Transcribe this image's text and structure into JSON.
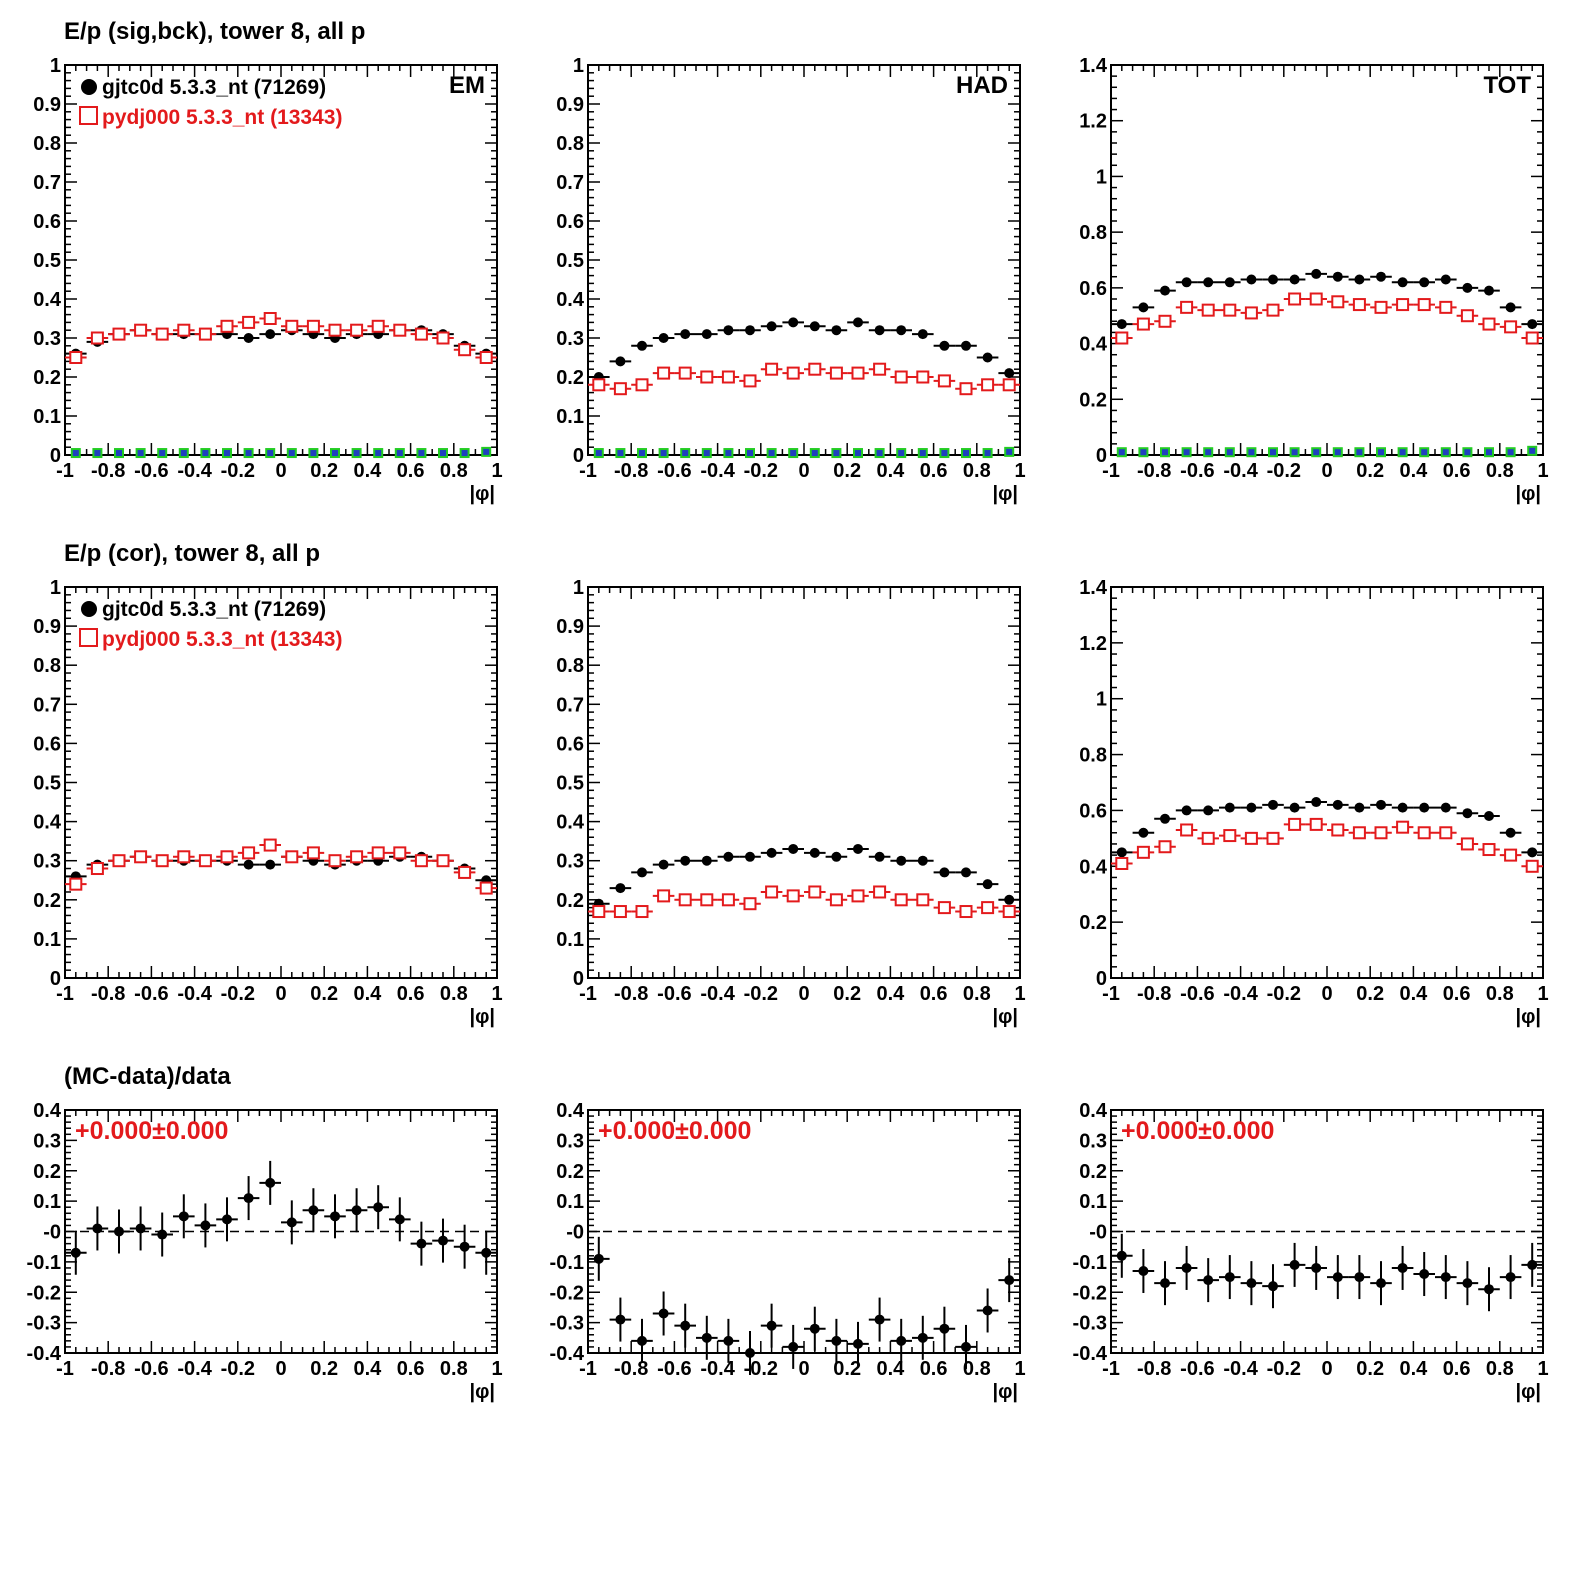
{
  "row_titles": [
    "E/p (sig,bck), tower 8, all p",
    "E/p (cor), tower 8, all p",
    "(MC-data)/data"
  ],
  "x_axis_label": "|φ|",
  "legend": {
    "data_label": "gjtc0d 5.3.3_nt (71269)",
    "mc_label": "pydj000 5.3.3_nt (13343)"
  },
  "panel_labels": [
    "EM",
    "HAD",
    "TOT"
  ],
  "ratio_text": "+0.000±0.000",
  "colors": {
    "data": "#000000",
    "mc": "#e31a1c",
    "bck_fill": "#1f3fbf",
    "bck_edge": "#22cc22"
  },
  "chart_data": [
    {
      "type": "scatter",
      "row": "sig_bck",
      "column": "EM",
      "x": [
        -0.95,
        -0.85,
        -0.75,
        -0.65,
        -0.55,
        -0.45,
        -0.35,
        -0.25,
        -0.15,
        -0.05,
        0.05,
        0.15,
        0.25,
        0.35,
        0.45,
        0.55,
        0.65,
        0.75,
        0.85,
        0.95
      ],
      "xlim": [
        -1,
        1
      ],
      "ylim": [
        0,
        1
      ],
      "series": [
        {
          "name": "gjtc0d 5.3.3_nt (71269)",
          "values": [
            0.26,
            0.29,
            0.31,
            0.32,
            0.31,
            0.31,
            0.31,
            0.31,
            0.3,
            0.31,
            0.32,
            0.31,
            0.3,
            0.31,
            0.31,
            0.32,
            0.32,
            0.31,
            0.28,
            0.26
          ]
        },
        {
          "name": "pydj000 5.3.3_nt (13343)",
          "values": [
            0.25,
            0.3,
            0.31,
            0.32,
            0.31,
            0.32,
            0.31,
            0.33,
            0.34,
            0.35,
            0.33,
            0.33,
            0.32,
            0.32,
            0.33,
            0.32,
            0.31,
            0.3,
            0.27,
            0.25
          ]
        },
        {
          "values": [
            0.005,
            0.005,
            0.005,
            0.005,
            0.005,
            0.005,
            0.005,
            0.005,
            0.005,
            0.005,
            0.005,
            0.005,
            0.005,
            0.005,
            0.005,
            0.005,
            0.005,
            0.005,
            0.005,
            0.008
          ]
        }
      ]
    },
    {
      "type": "scatter",
      "row": "sig_bck",
      "column": "HAD",
      "x": [
        -0.95,
        -0.85,
        -0.75,
        -0.65,
        -0.55,
        -0.45,
        -0.35,
        -0.25,
        -0.15,
        -0.05,
        0.05,
        0.15,
        0.25,
        0.35,
        0.45,
        0.55,
        0.65,
        0.75,
        0.85,
        0.95
      ],
      "xlim": [
        -1,
        1
      ],
      "ylim": [
        0,
        1
      ],
      "series": [
        {
          "name": "gjtc0d 5.3.3_nt (71269)",
          "values": [
            0.2,
            0.24,
            0.28,
            0.3,
            0.31,
            0.31,
            0.32,
            0.32,
            0.33,
            0.34,
            0.33,
            0.32,
            0.34,
            0.32,
            0.32,
            0.31,
            0.28,
            0.28,
            0.25,
            0.21
          ]
        },
        {
          "name": "pydj000 5.3.3_nt (13343)",
          "values": [
            0.18,
            0.17,
            0.18,
            0.21,
            0.21,
            0.2,
            0.2,
            0.19,
            0.22,
            0.21,
            0.22,
            0.21,
            0.21,
            0.22,
            0.2,
            0.2,
            0.19,
            0.17,
            0.18,
            0.18
          ]
        },
        {
          "values": [
            0.005,
            0.005,
            0.005,
            0.005,
            0.005,
            0.005,
            0.005,
            0.005,
            0.005,
            0.005,
            0.005,
            0.005,
            0.005,
            0.005,
            0.005,
            0.005,
            0.005,
            0.005,
            0.005,
            0.008
          ]
        }
      ]
    },
    {
      "type": "scatter",
      "row": "sig_bck",
      "column": "TOT",
      "x": [
        -0.95,
        -0.85,
        -0.75,
        -0.65,
        -0.55,
        -0.45,
        -0.35,
        -0.25,
        -0.15,
        -0.05,
        0.05,
        0.15,
        0.25,
        0.35,
        0.45,
        0.55,
        0.65,
        0.75,
        0.85,
        0.95
      ],
      "xlim": [
        -1,
        1
      ],
      "ylim": [
        0,
        1.4
      ],
      "series": [
        {
          "name": "gjtc0d 5.3.3_nt (71269)",
          "values": [
            0.47,
            0.53,
            0.59,
            0.62,
            0.62,
            0.62,
            0.63,
            0.63,
            0.63,
            0.65,
            0.64,
            0.63,
            0.64,
            0.62,
            0.62,
            0.63,
            0.6,
            0.59,
            0.53,
            0.47
          ]
        },
        {
          "name": "pydj000 5.3.3_nt (13343)",
          "values": [
            0.42,
            0.47,
            0.48,
            0.53,
            0.52,
            0.52,
            0.51,
            0.52,
            0.56,
            0.56,
            0.55,
            0.54,
            0.53,
            0.54,
            0.54,
            0.53,
            0.5,
            0.47,
            0.46,
            0.42
          ]
        },
        {
          "values": [
            0.01,
            0.01,
            0.01,
            0.01,
            0.01,
            0.01,
            0.01,
            0.01,
            0.01,
            0.01,
            0.01,
            0.01,
            0.01,
            0.01,
            0.01,
            0.01,
            0.01,
            0.01,
            0.01,
            0.015
          ]
        }
      ]
    },
    {
      "type": "scatter",
      "row": "cor",
      "column": "EM",
      "x": [
        -0.95,
        -0.85,
        -0.75,
        -0.65,
        -0.55,
        -0.45,
        -0.35,
        -0.25,
        -0.15,
        -0.05,
        0.05,
        0.15,
        0.25,
        0.35,
        0.45,
        0.55,
        0.65,
        0.75,
        0.85,
        0.95
      ],
      "xlim": [
        -1,
        1
      ],
      "ylim": [
        0,
        1
      ],
      "series": [
        {
          "name": "gjtc0d 5.3.3_nt (71269)",
          "values": [
            0.26,
            0.29,
            0.3,
            0.31,
            0.3,
            0.3,
            0.3,
            0.3,
            0.29,
            0.29,
            0.31,
            0.3,
            0.29,
            0.3,
            0.3,
            0.31,
            0.31,
            0.3,
            0.28,
            0.25
          ]
        },
        {
          "name": "pydj000 5.3.3_nt (13343)",
          "values": [
            0.24,
            0.28,
            0.3,
            0.31,
            0.3,
            0.31,
            0.3,
            0.31,
            0.32,
            0.34,
            0.31,
            0.32,
            0.3,
            0.31,
            0.32,
            0.32,
            0.3,
            0.3,
            0.27,
            0.23
          ]
        }
      ]
    },
    {
      "type": "scatter",
      "row": "cor",
      "column": "HAD",
      "x": [
        -0.95,
        -0.85,
        -0.75,
        -0.65,
        -0.55,
        -0.45,
        -0.35,
        -0.25,
        -0.15,
        -0.05,
        0.05,
        0.15,
        0.25,
        0.35,
        0.45,
        0.55,
        0.65,
        0.75,
        0.85,
        0.95
      ],
      "xlim": [
        -1,
        1
      ],
      "ylim": [
        0,
        1
      ],
      "series": [
        {
          "name": "gjtc0d 5.3.3_nt (71269)",
          "values": [
            0.19,
            0.23,
            0.27,
            0.29,
            0.3,
            0.3,
            0.31,
            0.31,
            0.32,
            0.33,
            0.32,
            0.31,
            0.33,
            0.31,
            0.3,
            0.3,
            0.27,
            0.27,
            0.24,
            0.2
          ]
        },
        {
          "name": "pydj000 5.3.3_nt (13343)",
          "values": [
            0.17,
            0.17,
            0.17,
            0.21,
            0.2,
            0.2,
            0.2,
            0.19,
            0.22,
            0.21,
            0.22,
            0.2,
            0.21,
            0.22,
            0.2,
            0.2,
            0.18,
            0.17,
            0.18,
            0.17
          ]
        }
      ]
    },
    {
      "type": "scatter",
      "row": "cor",
      "column": "TOT",
      "x": [
        -0.95,
        -0.85,
        -0.75,
        -0.65,
        -0.55,
        -0.45,
        -0.35,
        -0.25,
        -0.15,
        -0.05,
        0.05,
        0.15,
        0.25,
        0.35,
        0.45,
        0.55,
        0.65,
        0.75,
        0.85,
        0.95
      ],
      "xlim": [
        -1,
        1
      ],
      "ylim": [
        0,
        1.4
      ],
      "series": [
        {
          "name": "gjtc0d 5.3.3_nt (71269)",
          "values": [
            0.45,
            0.52,
            0.57,
            0.6,
            0.6,
            0.61,
            0.61,
            0.62,
            0.61,
            0.63,
            0.62,
            0.61,
            0.62,
            0.61,
            0.61,
            0.61,
            0.59,
            0.58,
            0.52,
            0.45
          ]
        },
        {
          "name": "pydj000 5.3.3_nt (13343)",
          "values": [
            0.41,
            0.45,
            0.47,
            0.53,
            0.5,
            0.51,
            0.5,
            0.5,
            0.55,
            0.55,
            0.53,
            0.52,
            0.52,
            0.54,
            0.52,
            0.52,
            0.48,
            0.46,
            0.44,
            0.4
          ]
        }
      ]
    },
    {
      "type": "scatter",
      "row": "ratio",
      "column": "EM",
      "x": [
        -0.95,
        -0.85,
        -0.75,
        -0.65,
        -0.55,
        -0.45,
        -0.35,
        -0.25,
        -0.15,
        -0.05,
        0.05,
        0.15,
        0.25,
        0.35,
        0.45,
        0.55,
        0.65,
        0.75,
        0.85,
        0.95
      ],
      "xlim": [
        -1,
        1
      ],
      "ylim": [
        -0.4,
        0.4
      ],
      "series": [
        {
          "values": [
            -0.07,
            0.01,
            0.0,
            0.01,
            -0.01,
            0.05,
            0.02,
            0.04,
            0.11,
            0.16,
            0.03,
            0.07,
            0.05,
            0.07,
            0.08,
            0.04,
            -0.04,
            -0.03,
            -0.05,
            -0.07
          ]
        }
      ],
      "reference_line": 0
    },
    {
      "type": "scatter",
      "row": "ratio",
      "column": "HAD",
      "x": [
        -0.95,
        -0.85,
        -0.75,
        -0.65,
        -0.55,
        -0.45,
        -0.35,
        -0.25,
        -0.15,
        -0.05,
        0.05,
        0.15,
        0.25,
        0.35,
        0.45,
        0.55,
        0.65,
        0.75,
        0.85,
        0.95
      ],
      "xlim": [
        -1,
        1
      ],
      "ylim": [
        -0.4,
        0.4
      ],
      "series": [
        {
          "values": [
            -0.09,
            -0.29,
            -0.36,
            -0.27,
            -0.31,
            -0.35,
            -0.36,
            -0.4,
            -0.31,
            -0.38,
            -0.32,
            -0.36,
            -0.37,
            -0.29,
            -0.36,
            -0.35,
            -0.32,
            -0.38,
            -0.26,
            -0.16
          ]
        }
      ],
      "reference_line": 0
    },
    {
      "type": "scatter",
      "row": "ratio",
      "column": "TOT",
      "x": [
        -0.95,
        -0.85,
        -0.75,
        -0.65,
        -0.55,
        -0.45,
        -0.35,
        -0.25,
        -0.15,
        -0.05,
        0.05,
        0.15,
        0.25,
        0.35,
        0.45,
        0.55,
        0.65,
        0.75,
        0.85,
        0.95
      ],
      "xlim": [
        -1,
        1
      ],
      "ylim": [
        -0.4,
        0.4
      ],
      "series": [
        {
          "values": [
            -0.08,
            -0.13,
            -0.17,
            -0.12,
            -0.16,
            -0.15,
            -0.17,
            -0.18,
            -0.11,
            -0.12,
            -0.15,
            -0.15,
            -0.17,
            -0.12,
            -0.14,
            -0.15,
            -0.17,
            -0.19,
            -0.15,
            -0.11
          ]
        }
      ],
      "reference_line": 0
    }
  ]
}
